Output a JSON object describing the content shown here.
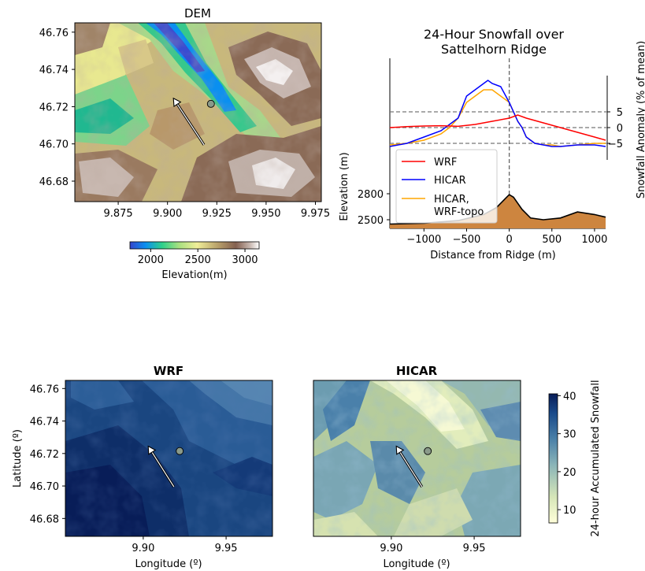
{
  "chart_data": [
    {
      "type": "heatmap",
      "title": "DEM",
      "xlabel": "",
      "ylabel": "",
      "xlim": [
        9.853,
        9.978
      ],
      "ylim": [
        46.669,
        46.765
      ],
      "xticks": [
        "9.875",
        "9.900",
        "9.925",
        "9.950",
        "9.975"
      ],
      "xtick_values": [
        9.875,
        9.9,
        9.925,
        9.95,
        9.975
      ],
      "yticks": [
        "46.68",
        "46.70",
        "46.72",
        "46.74",
        "46.76"
      ],
      "ytick_values": [
        46.68,
        46.7,
        46.72,
        46.74,
        46.76
      ],
      "colormap": "terrain",
      "colorbar": {
        "label": "Elevation(m)",
        "ticks": [
          "2000",
          "2500",
          "3000"
        ],
        "tick_values": [
          2000,
          2500,
          3000
        ],
        "range": [
          1780,
          3150
        ],
        "orientation": "horizontal"
      },
      "marker": {
        "lon": 9.922,
        "lat": 46.7215,
        "color": "#8a9a8a"
      },
      "arrow": {
        "from_lon": 9.9185,
        "from_lat": 46.6995,
        "to_lon": 9.903,
        "to_lat": 46.7245
      }
    },
    {
      "type": "line",
      "title": "24-Hour Snowfall over\nSattelhorn Ridge",
      "xlabel": "Distance from Ridge (m)",
      "ylabel": "Elevation (m)",
      "y2label": "Snowfall Anomaly (% of mean)",
      "xlim": [
        -1400,
        1130
      ],
      "xticks": [
        "−1000",
        "−500",
        "0",
        "500",
        "1000"
      ],
      "xtick_values": [
        -1000,
        -500,
        0,
        500,
        1000
      ],
      "elevation_ticks": [
        "2500",
        "2800"
      ],
      "elevation_tick_values": [
        2500,
        2800
      ],
      "anomaly_ticks": [
        "5",
        "0",
        "−5"
      ],
      "anomaly_tick_values": [
        5,
        0,
        -5
      ],
      "legend_position": "lower-left",
      "series": [
        {
          "name": "WRF",
          "color": "#ff0000",
          "x": [
            -1400,
            -1200,
            -1000,
            -800,
            -600,
            -400,
            -200,
            0,
            100,
            200,
            400,
            600,
            800,
            1000,
            1130
          ],
          "y": [
            0,
            0.3,
            0.5,
            0.6,
            0.4,
            1.0,
            2.0,
            3.0,
            4.0,
            3.0,
            1.5,
            0,
            -1.5,
            -3.0,
            -4.0
          ]
        },
        {
          "name": "HICAR",
          "color": "#0000ff",
          "x": [
            -1400,
            -1200,
            -1000,
            -800,
            -600,
            -500,
            -400,
            -300,
            -250,
            -200,
            -100,
            0,
            50,
            100,
            150,
            200,
            300,
            400,
            500,
            600,
            800,
            1000,
            1130
          ],
          "y": [
            -6,
            -5,
            -3,
            -1,
            3,
            10,
            12,
            14,
            15,
            14,
            13,
            8,
            5,
            2,
            0,
            -3,
            -5,
            -5.5,
            -6,
            -6,
            -5.5,
            -5.5,
            -6
          ]
        },
        {
          "name": "HICAR,\nWRF-topo",
          "color": "#ffa500",
          "x": [
            -1400,
            -1200,
            -1000,
            -800,
            -700,
            -600,
            -500,
            -400,
            -300,
            -200,
            -100,
            0,
            50,
            100,
            150,
            200,
            300,
            400,
            500,
            600,
            800,
            1000,
            1130
          ],
          "y": [
            -5.5,
            -5,
            -4,
            -2,
            0,
            3,
            8,
            10,
            12,
            12,
            10,
            8,
            5,
            2,
            0,
            -3,
            -5,
            -5.5,
            -5.5,
            -6,
            -5.5,
            -5,
            -5
          ]
        },
        {
          "name": "Elevation",
          "color": "#cd853f",
          "x": [
            -1400,
            -1000,
            -600,
            -300,
            -150,
            -50,
            0,
            50,
            150,
            250,
            400,
            600,
            800,
            1000,
            1130
          ],
          "y": [
            2450,
            2460,
            2490,
            2560,
            2640,
            2740,
            2790,
            2760,
            2620,
            2520,
            2500,
            2520,
            2590,
            2560,
            2530
          ]
        }
      ],
      "reference_lines": {
        "vertical_x": 0,
        "horizontal_y": [
          5,
          0,
          -5
        ]
      }
    },
    {
      "type": "heatmap",
      "title": "WRF",
      "xlabel": "Longitude (º)",
      "ylabel": "Latitude (º)",
      "xlim": [
        9.853,
        9.978
      ],
      "ylim": [
        46.669,
        46.765
      ],
      "xticks": [
        "9.90",
        "9.95"
      ],
      "xtick_values": [
        9.9,
        9.95
      ],
      "yticks": [
        "46.68",
        "46.70",
        "46.72",
        "46.74",
        "46.76"
      ],
      "ytick_values": [
        46.68,
        46.7,
        46.72,
        46.74,
        46.76
      ],
      "colormap": "YlGnBu",
      "marker": {
        "lon": 9.922,
        "lat": 46.7215,
        "color": "#8a9a8a"
      },
      "arrow": {
        "from_lon": 9.9185,
        "from_lat": 46.6995,
        "to_lon": 9.903,
        "to_lat": 46.7245
      }
    },
    {
      "type": "heatmap",
      "title": "HICAR",
      "xlabel": "Longitude (º)",
      "ylabel": "",
      "xlim": [
        9.853,
        9.978
      ],
      "ylim": [
        46.669,
        46.765
      ],
      "xticks": [
        "9.90",
        "9.95"
      ],
      "xtick_values": [
        9.9,
        9.95
      ],
      "colormap": "YlGnBu",
      "colorbar": {
        "label": "24-hour Accumulated Snowfall",
        "ticks": [
          "10",
          "20",
          "30",
          "40"
        ],
        "tick_values": [
          10,
          20,
          30,
          40
        ],
        "range": [
          6.5,
          40.5
        ],
        "orientation": "vertical"
      },
      "marker": {
        "lon": 9.922,
        "lat": 46.7215,
        "color": "#8a9a8a"
      },
      "arrow": {
        "from_lon": 9.9185,
        "from_lat": 46.6995,
        "to_lon": 9.903,
        "to_lat": 46.7245
      }
    }
  ]
}
